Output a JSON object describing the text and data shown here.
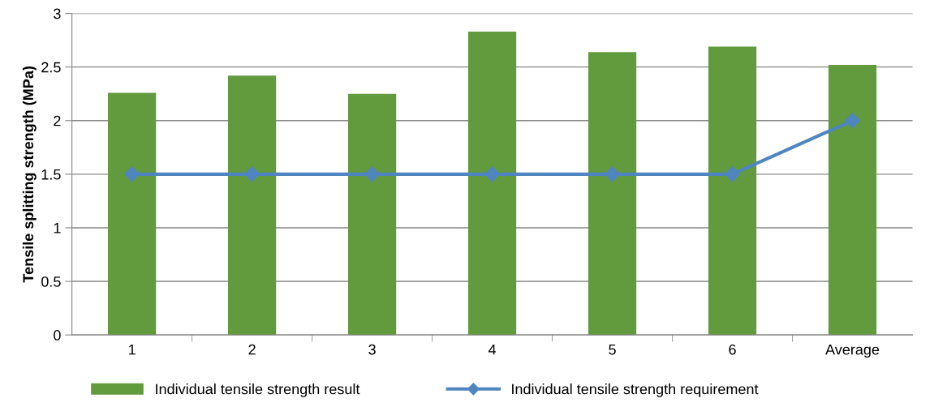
{
  "chart_data": {
    "type": "bar",
    "ylabel": "Tensile splitting strength (MPa)",
    "categories": [
      "1",
      "2",
      "3",
      "4",
      "5",
      "6",
      "Average"
    ],
    "series": [
      {
        "name": "Individual tensile strength result",
        "color": "#629a3e",
        "values": [
          2.26,
          2.42,
          2.25,
          2.83,
          2.64,
          2.69,
          2.52
        ]
      },
      {
        "name": "Individual tensile strength requirement",
        "type": "line",
        "color": "#4f86c0",
        "marker": "diamond",
        "values": [
          1.5,
          1.5,
          1.5,
          1.5,
          1.5,
          1.5,
          2.0
        ]
      }
    ],
    "ylim": [
      0,
      3
    ],
    "yticks": [
      0,
      0.5,
      1,
      1.5,
      2,
      2.5,
      3
    ],
    "grid": "y",
    "legend": "bottom"
  }
}
